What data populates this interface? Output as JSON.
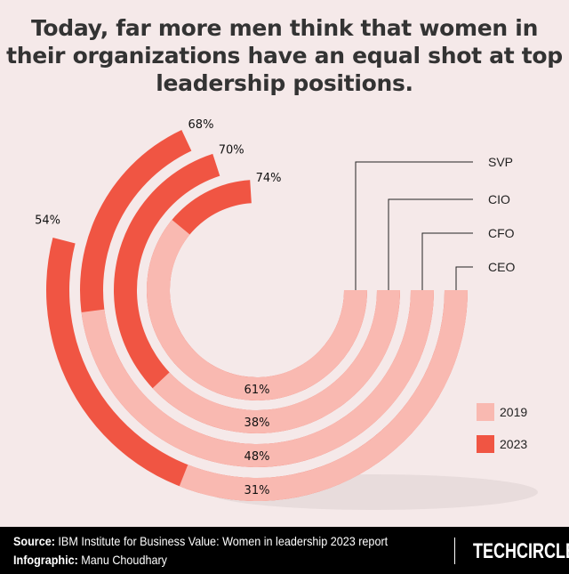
{
  "title": "Today, far more men think that women in their organizations have an equal shot at top leadership positions.",
  "chart_data": {
    "type": "radial-bar",
    "title": "Today, far more men think that women in their organizations have an equal shot at top leadership positions.",
    "categories": [
      "SVP",
      "CIO",
      "CFO",
      "CEO"
    ],
    "series": [
      {
        "name": "2019",
        "color": "#f9b9b1",
        "values": [
          61,
          38,
          48,
          31
        ]
      },
      {
        "name": "2023",
        "color": "#f05543",
        "values": [
          74,
          70,
          68,
          54
        ]
      }
    ],
    "unit": "%",
    "range": [
      0,
      100
    ],
    "legend": "right"
  },
  "footer": {
    "source_label": "Source:",
    "source_text": "IBM Institute for Business Value: Women in leadership 2023 report",
    "infographic_label": "Infographic:",
    "infographic_text": "Manu Choudhary",
    "brand": "TECHCIRCLE"
  }
}
